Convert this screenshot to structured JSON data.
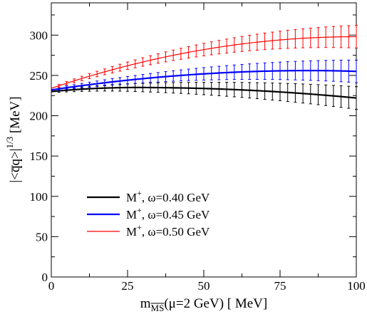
{
  "chart_data": {
    "type": "line",
    "title": "",
    "xlabel": {
      "main": "m",
      "sub": "MS",
      "tail": "(μ=2 GeV) [ MeV]"
    },
    "ylabel": {
      "prefix": "|<",
      "q1": "q",
      "q2": "q",
      "mid": ">|",
      "sup": "1/3",
      "suffix": " [MeV]"
    },
    "xlim": [
      0,
      100
    ],
    "ylim": [
      0,
      340
    ],
    "xticks": [
      0,
      25,
      50,
      75,
      100
    ],
    "yticks": [
      0,
      50,
      100,
      150,
      200,
      250,
      300
    ],
    "legend_position": "lower-left",
    "x": [
      0,
      2.5,
      5,
      7.5,
      10,
      12.5,
      15,
      17.5,
      20,
      22.5,
      25,
      27.5,
      30,
      32.5,
      35,
      37.5,
      40,
      42.5,
      45,
      47.5,
      50,
      52.5,
      55,
      57.5,
      60,
      62.5,
      65,
      67.5,
      70,
      72.5,
      75,
      77.5,
      80,
      82.5,
      85,
      87.5,
      90,
      92.5,
      95,
      97.5,
      100
    ],
    "series": [
      {
        "name_main": "M",
        "name_sup": "+",
        "name_rest": ", ω=0.40 GeV",
        "color": "#000000",
        "width": 2.2,
        "y_start": 230,
        "y_peak": 235,
        "x_peak": 28,
        "y_end": 222,
        "err_start": 1.5,
        "err_end": 14
      },
      {
        "name_main": "M",
        "name_sup": "+",
        "name_rest": ", ω=0.45 GeV",
        "color": "#0000ff",
        "width": 2.2,
        "y_start": 232,
        "y_peak": 256,
        "x_peak": 85,
        "y_end": 255,
        "err_start": 1.5,
        "err_end": 14
      },
      {
        "name_main": "M",
        "name_sup": "+",
        "name_rest": ", ω=0.50 GeV",
        "color": "#ff0000",
        "width": 1.2,
        "y_start": 234,
        "y_peak": 298,
        "x_peak": 100,
        "y_end": 298,
        "err_start": 1.5,
        "err_end": 14
      }
    ]
  }
}
